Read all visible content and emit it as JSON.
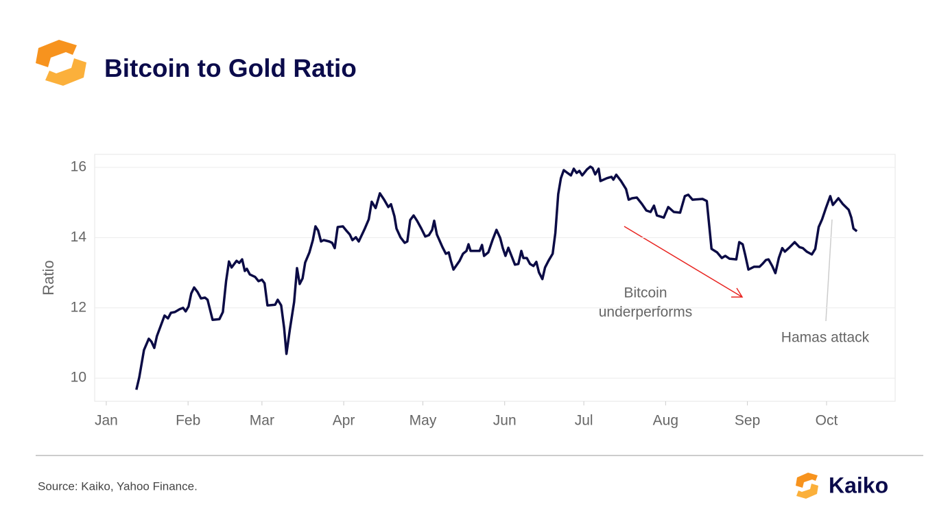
{
  "chart_data": {
    "type": "line",
    "title": "Bitcoin to Gold Ratio",
    "y_label": "Ratio",
    "source": "Source: Kaiko, Yahoo Finance.",
    "brand": "Kaiko",
    "annotations": [
      {
        "lines": [
          "Bitcoin",
          "underperforms"
        ]
      },
      {
        "lines": [
          "Hamas attack"
        ]
      }
    ],
    "xlim": [
      -4.4,
      299
    ],
    "xticks": [
      {
        "value": 0,
        "label": "Jan"
      },
      {
        "value": 31,
        "label": "Feb"
      },
      {
        "value": 59,
        "label": "Mar"
      },
      {
        "value": 90,
        "label": "Apr"
      },
      {
        "value": 120,
        "label": "May"
      },
      {
        "value": 151,
        "label": "Jun"
      },
      {
        "value": 181,
        "label": "Jul"
      },
      {
        "value": 212,
        "label": "Aug"
      },
      {
        "value": 243,
        "label": "Sep"
      },
      {
        "value": 273,
        "label": "Oct"
      }
    ],
    "ylim": [
      9.34,
      16.37
    ],
    "yticks": [
      10,
      12,
      14,
      16
    ],
    "grid": true,
    "x": [
      11.4,
      12.5,
      14.3,
      16.1,
      17.1,
      18.2,
      19.2,
      22.1,
      23.4,
      24.5,
      26.0,
      27.8,
      29.1,
      30.1,
      31.2,
      32.2,
      33.3,
      34.6,
      35.9,
      37.4,
      38.4,
      40.3,
      42.9,
      44.2,
      45.4,
      46.5,
      47.5,
      49.4,
      50.4,
      51.5,
      52.5,
      53.3,
      54.4,
      56.4,
      57.7,
      59.0,
      60.0,
      61.1,
      64.0,
      65.0,
      66.3,
      67.4,
      68.3,
      69.6,
      71.2,
      72.3,
      73.3,
      74.4,
      75.4,
      77.0,
      78.3,
      79.3,
      80.3,
      81.4,
      82.4,
      84.5,
      85.6,
      86.6,
      87.7,
      89.7,
      91.2,
      92.3,
      93.3,
      94.6,
      95.7,
      98.0,
      99.5,
      100.6,
      102.1,
      103.7,
      105.3,
      106.9,
      107.9,
      109.2,
      110.0,
      111.5,
      113.1,
      114.1,
      115.2,
      116.5,
      117.8,
      119.4,
      120.9,
      122.3,
      123.5,
      124.3,
      125.3,
      127.4,
      128.7,
      129.8,
      130.6,
      131.6,
      133.9,
      135.2,
      136.5,
      137.3,
      138.1,
      141.5,
      142.4,
      143.2,
      144.8,
      146.4,
      147.9,
      149.3,
      150.3,
      151.3,
      152.4,
      153.6,
      154.9,
      156.2,
      157.3,
      158.1,
      159.4,
      160.6,
      161.9,
      163.0,
      164.0,
      165.3,
      166.3,
      167.6,
      169.2,
      170.2,
      171.3,
      172.3,
      173.4,
      174.8,
      176.1,
      177.2,
      178.3,
      179.3,
      180.4,
      182.2,
      183.5,
      184.3,
      185.3,
      186.6,
      187.3,
      189.7,
      191.5,
      192.2,
      193.3,
      195.1,
      197.0,
      198.0,
      199.3,
      201.1,
      203.0,
      204.7,
      206.3,
      207.6,
      208.7,
      211.3,
      213.0,
      215.1,
      217.5,
      219.3,
      220.6,
      222.2,
      226.0,
      227.6,
      229.4,
      231.5,
      233.3,
      234.6,
      236.2,
      238.8,
      239.9,
      241.2,
      242.2,
      243.4,
      245.5,
      247.6,
      248.7,
      250.0,
      251.0,
      252.4,
      253.6,
      254.9,
      256.2,
      257.2,
      258.8,
      260.9,
      262.7,
      264.0,
      265.5,
      267.4,
      268.7,
      270.0,
      271.3,
      272.8,
      274.4,
      275.4,
      277.5,
      279.1,
      281.4,
      282.4,
      283.2,
      284.5
    ],
    "series": [
      {
        "name": "Bitcoin to Gold Ratio",
        "color": "#0b0b45",
        "values": [
          9.67,
          10.02,
          10.8,
          11.12,
          11.04,
          10.86,
          11.2,
          11.78,
          11.7,
          11.86,
          11.88,
          11.96,
          12.0,
          11.9,
          12.04,
          12.41,
          12.58,
          12.45,
          12.27,
          12.29,
          12.23,
          11.66,
          11.68,
          11.88,
          12.76,
          13.32,
          13.15,
          13.34,
          13.28,
          13.38,
          13.05,
          13.11,
          12.95,
          12.88,
          12.76,
          12.8,
          12.7,
          12.07,
          12.09,
          12.23,
          12.07,
          11.43,
          10.69,
          11.39,
          12.17,
          13.13,
          12.68,
          12.84,
          13.29,
          13.58,
          13.93,
          14.32,
          14.2,
          13.89,
          13.93,
          13.89,
          13.85,
          13.7,
          14.3,
          14.32,
          14.18,
          14.09,
          13.93,
          14.01,
          13.89,
          14.26,
          14.52,
          15.02,
          14.84,
          15.26,
          15.08,
          14.87,
          14.95,
          14.61,
          14.26,
          14.01,
          13.85,
          13.89,
          14.5,
          14.63,
          14.48,
          14.26,
          14.03,
          14.07,
          14.22,
          14.48,
          14.09,
          13.73,
          13.54,
          13.58,
          13.34,
          13.09,
          13.34,
          13.54,
          13.62,
          13.81,
          13.62,
          13.62,
          13.79,
          13.48,
          13.58,
          13.93,
          14.22,
          13.99,
          13.7,
          13.48,
          13.71,
          13.48,
          13.23,
          13.25,
          13.62,
          13.42,
          13.42,
          13.25,
          13.19,
          13.31,
          13.01,
          12.82,
          13.15,
          13.34,
          13.54,
          14.13,
          15.24,
          15.69,
          15.92,
          15.84,
          15.77,
          15.96,
          15.84,
          15.9,
          15.77,
          15.94,
          16.02,
          15.98,
          15.8,
          15.96,
          15.61,
          15.69,
          15.73,
          15.65,
          15.79,
          15.61,
          15.38,
          15.08,
          15.12,
          15.14,
          14.96,
          14.77,
          14.73,
          14.91,
          14.63,
          14.57,
          14.87,
          14.73,
          14.71,
          15.18,
          15.22,
          15.08,
          15.1,
          15.04,
          13.68,
          13.58,
          13.42,
          13.48,
          13.4,
          13.38,
          13.87,
          13.81,
          13.5,
          13.09,
          13.17,
          13.17,
          13.25,
          13.36,
          13.38,
          13.19,
          12.99,
          13.42,
          13.7,
          13.6,
          13.71,
          13.87,
          13.73,
          13.7,
          13.6,
          13.52,
          13.68,
          14.3,
          14.52,
          14.85,
          15.18,
          14.93,
          15.12,
          14.96,
          14.79,
          14.57,
          14.26,
          14.18
        ]
      }
    ]
  }
}
